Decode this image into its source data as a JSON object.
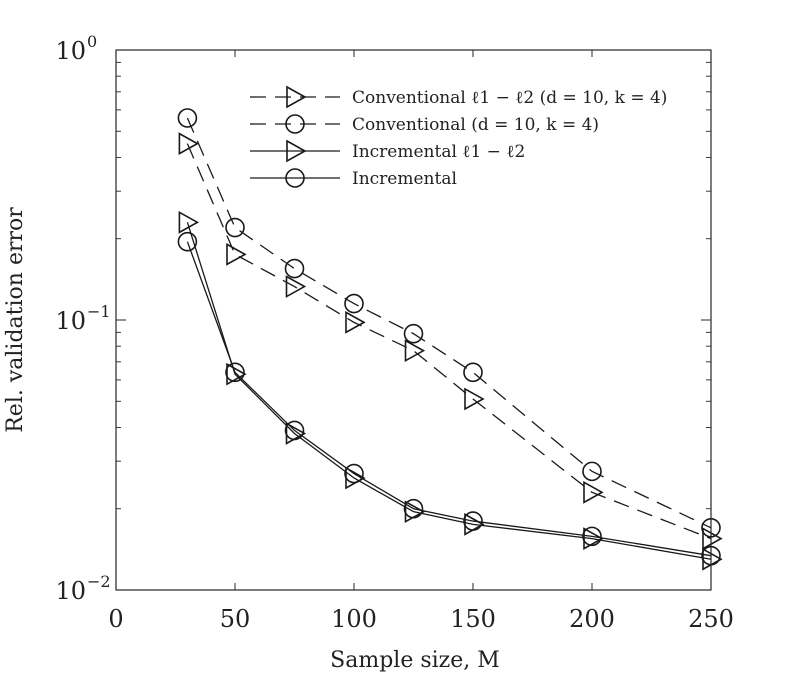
{
  "chart_data": {
    "type": "line",
    "title": "",
    "xlabel": "Sample size, M",
    "ylabel": "Rel. validation error",
    "x_scale": "linear",
    "y_scale": "log",
    "xlim": [
      0,
      250
    ],
    "ylim": [
      0.01,
      1
    ],
    "xticks": [
      0,
      50,
      100,
      150,
      200,
      250
    ],
    "xtick_labels": [
      "0",
      "50",
      "100",
      "150",
      "200",
      "250"
    ],
    "yticks": [
      {
        "value": 1,
        "base": "10",
        "exponent": "0"
      },
      {
        "value": 0.1,
        "base": "10",
        "exponent": "−1"
      },
      {
        "value": 0.01,
        "base": "10",
        "exponent": "−2"
      }
    ],
    "grid": false,
    "legend_position": "top-right",
    "series": [
      {
        "name": "Conventional ℓ1 − ℓ2 (d = 10, k = 4)",
        "line_style": "dashed",
        "marker": "triangle-right",
        "x": [
          30,
          50,
          75,
          100,
          125,
          150,
          200,
          250
        ],
        "values": [
          0.45,
          0.175,
          0.133,
          0.098,
          0.077,
          0.051,
          0.023,
          0.0155
        ]
      },
      {
        "name": "Conventional (d = 10, k = 4)",
        "line_style": "dashed",
        "marker": "circle",
        "x": [
          30,
          50,
          75,
          100,
          125,
          150,
          200,
          250
        ],
        "values": [
          0.56,
          0.22,
          0.155,
          0.115,
          0.089,
          0.064,
          0.0275,
          0.017
        ]
      },
      {
        "name": "Incremental ℓ1 − ℓ2",
        "line_style": "solid",
        "marker": "triangle-right",
        "x": [
          30,
          50,
          75,
          100,
          125,
          150,
          200,
          250
        ],
        "values": [
          0.23,
          0.063,
          0.038,
          0.026,
          0.0195,
          0.0175,
          0.0155,
          0.013
        ]
      },
      {
        "name": "Incremental",
        "line_style": "solid",
        "marker": "circle",
        "x": [
          30,
          50,
          75,
          100,
          125,
          150,
          200,
          250
        ],
        "values": [
          0.195,
          0.064,
          0.039,
          0.027,
          0.02,
          0.018,
          0.0158,
          0.0134
        ]
      }
    ]
  },
  "colors": {
    "line": "#1a1a1a",
    "axis": "#262626",
    "background": "#ffffff"
  }
}
